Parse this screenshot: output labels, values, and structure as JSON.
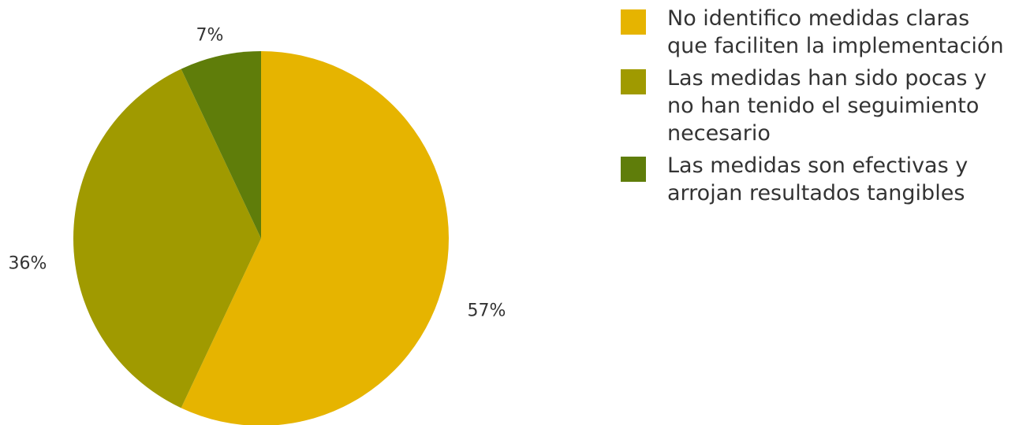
{
  "chart_data": {
    "type": "pie",
    "title": "",
    "categories": [
      "No identifico medidas claras\nque faciliten la implementación",
      "Las medidas han sido pocas y\nno han tenido el seguimiento\nnecesario",
      "Las medidas son efectivas y\narrojan resultados tangibles"
    ],
    "values": [
      57,
      36,
      7
    ],
    "unit": "%",
    "data_labels": [
      "57%",
      "36%",
      "7%"
    ],
    "colors": [
      "#E6B400",
      "#A09A00",
      "#5F7D0A"
    ],
    "start_angle_deg": 0,
    "direction": "clockwise",
    "legend_position": "right"
  }
}
